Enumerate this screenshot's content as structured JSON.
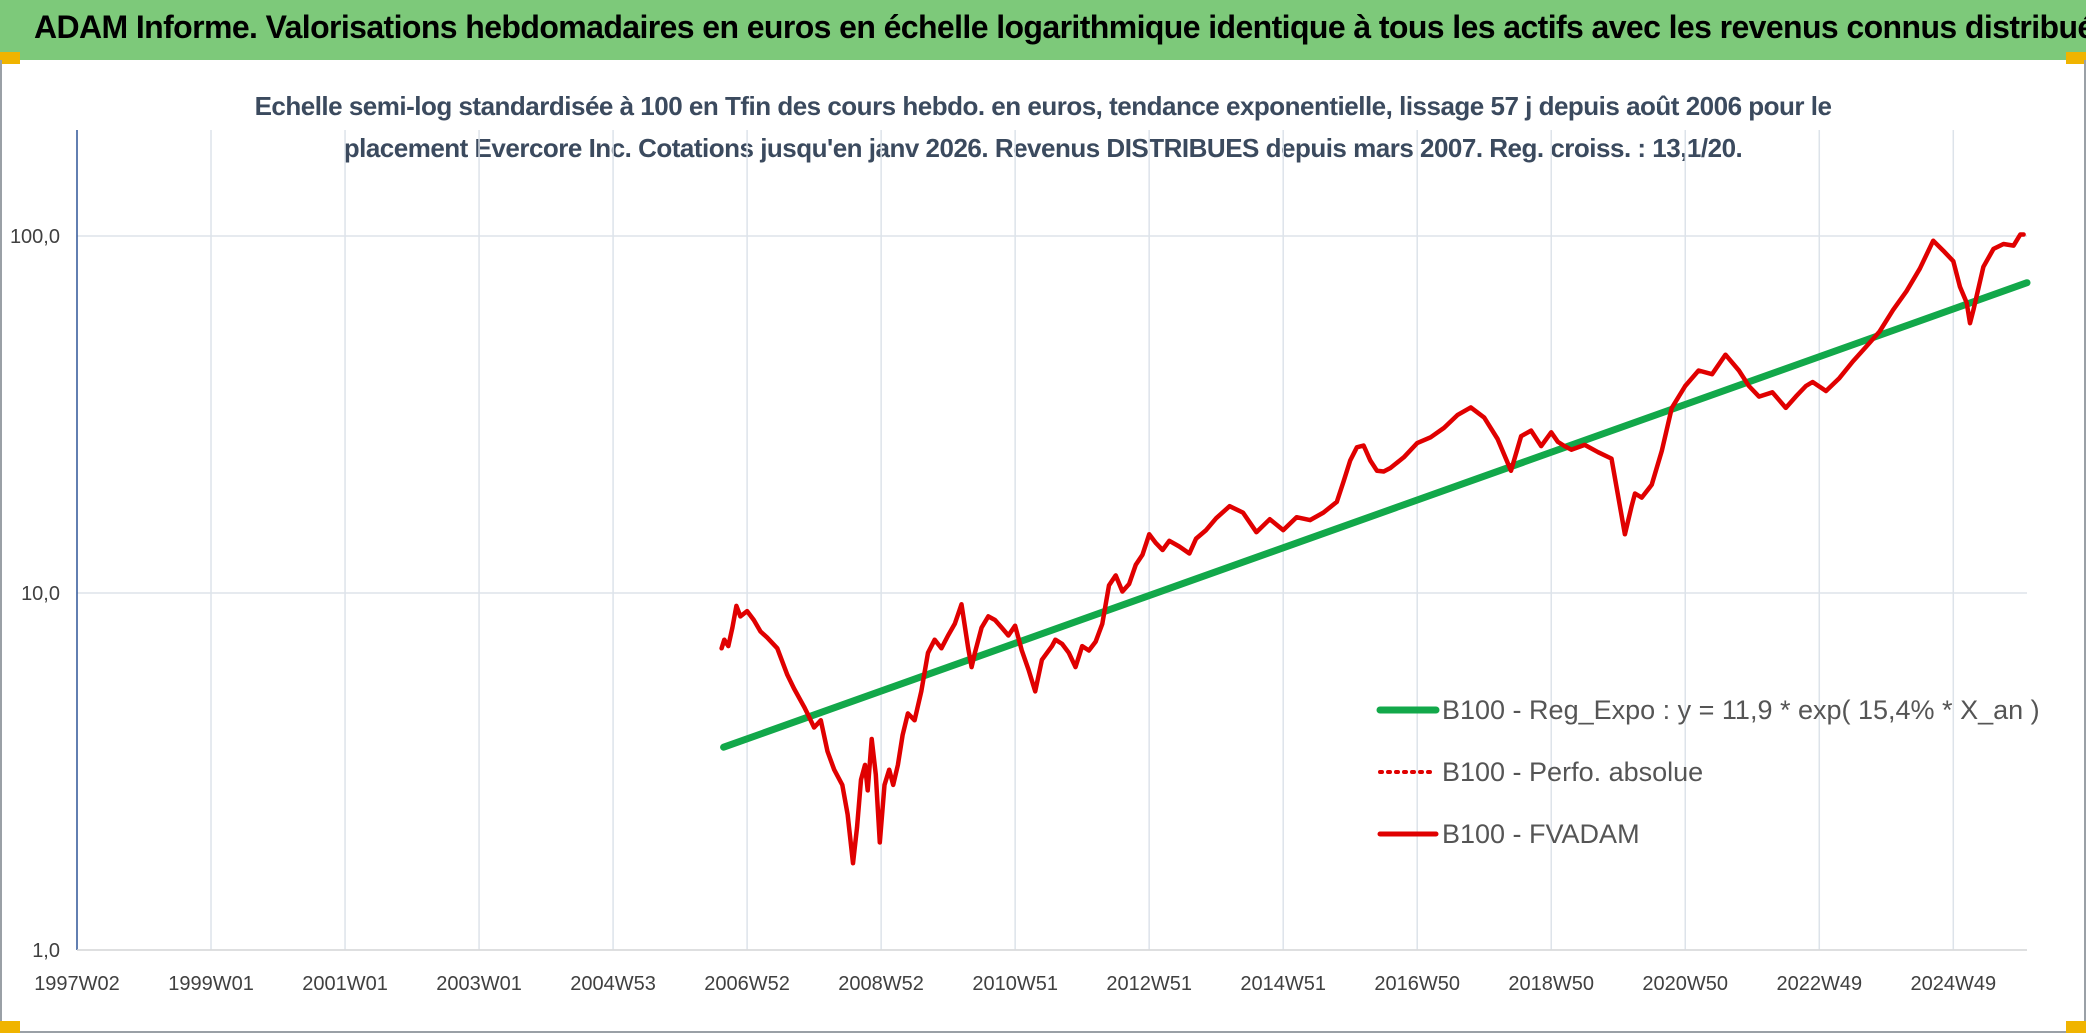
{
  "header": {
    "title": "ADAM Informe. Valorisations hebdomadaires en euros en échelle logarithmique identique à tous les actifs avec les revenus connus distribués"
  },
  "chart_data": {
    "type": "line",
    "title_line1": "Echelle semi-log standardisée à 100 en Tfin des cours hebdo. en euros, tendance exponentielle, lissage 57 j depuis août 2006 pour le",
    "title_line2": "placement Evercore Inc. Cotations jusqu'en janv 2026. Revenus DISTRIBUES depuis mars 2007. Reg. croiss. : 13,1/20.",
    "y_scale": "log",
    "ylim": [
      1,
      180
    ],
    "y_ticks": [
      {
        "value": 1,
        "label": "1,0"
      },
      {
        "value": 10,
        "label": "10,0"
      },
      {
        "value": 100,
        "label": "100,0"
      }
    ],
    "x_ticks": [
      {
        "year": 1997.0,
        "label": "1997W02"
      },
      {
        "year": 1999.0,
        "label": "1999W01"
      },
      {
        "year": 2001.0,
        "label": "2001W01"
      },
      {
        "year": 2003.0,
        "label": "2003W01"
      },
      {
        "year": 2005.0,
        "label": "2004W53"
      },
      {
        "year": 2007.0,
        "label": "2006W52"
      },
      {
        "year": 2009.0,
        "label": "2008W52"
      },
      {
        "year": 2011.0,
        "label": "2010W51"
      },
      {
        "year": 2013.0,
        "label": "2012W51"
      },
      {
        "year": 2015.0,
        "label": "2014W51"
      },
      {
        "year": 2017.0,
        "label": "2016W50"
      },
      {
        "year": 2019.0,
        "label": "2018W50"
      },
      {
        "year": 2021.0,
        "label": "2020W50"
      },
      {
        "year": 2023.0,
        "label": "2022W49"
      },
      {
        "year": 2025.0,
        "label": "2024W49"
      }
    ],
    "xlim": [
      1997.0,
      2026.1
    ],
    "grid": true,
    "legend_placement": "right",
    "series": [
      {
        "name": "B100 - Reg_Expo : y = 11,9 * exp( 15,4% *  X_an )",
        "style": "solid-thick",
        "color": "#12a84a",
        "x": [
          2006.65,
          2026.1
        ],
        "y": [
          3.7,
          74
        ]
      },
      {
        "name": "B100 - Perfo. absolue",
        "style": "dotted",
        "color": "#e00000",
        "x": [],
        "y": []
      },
      {
        "name": "B100 - FVADAM",
        "style": "solid",
        "color": "#e00000",
        "x": [
          2006.62,
          2006.66,
          2006.72,
          2006.78,
          2006.84,
          2006.9,
          2007.0,
          2007.1,
          2007.2,
          2007.3,
          2007.45,
          2007.6,
          2007.7,
          2007.85,
          2007.9,
          2008.0,
          2008.1,
          2008.2,
          2008.3,
          2008.42,
          2008.5,
          2008.58,
          2008.64,
          2008.7,
          2008.76,
          2008.8,
          2008.86,
          2008.92,
          2008.98,
          2009.05,
          2009.12,
          2009.18,
          2009.25,
          2009.32,
          2009.4,
          2009.5,
          2009.6,
          2009.7,
          2009.8,
          2009.9,
          2010.0,
          2010.1,
          2010.2,
          2010.3,
          2010.35,
          2010.4,
          2010.5,
          2010.6,
          2010.7,
          2010.8,
          2010.9,
          2011.0,
          2011.1,
          2011.2,
          2011.3,
          2011.4,
          2011.55,
          2011.6,
          2011.7,
          2011.8,
          2011.9,
          2012.0,
          2012.1,
          2012.2,
          2012.3,
          2012.4,
          2012.5,
          2012.6,
          2012.7,
          2012.8,
          2012.9,
          2013.0,
          2013.1,
          2013.2,
          2013.3,
          2013.45,
          2013.6,
          2013.7,
          2013.85,
          2014.0,
          2014.2,
          2014.4,
          2014.6,
          2014.8,
          2015.0,
          2015.2,
          2015.4,
          2015.6,
          2015.8,
          2015.9,
          2016.0,
          2016.1,
          2016.2,
          2016.3,
          2016.4,
          2016.5,
          2016.6,
          2016.8,
          2017.0,
          2017.2,
          2017.4,
          2017.6,
          2017.8,
          2018.0,
          2018.2,
          2018.4,
          2018.55,
          2018.7,
          2018.85,
          2019.0,
          2019.1,
          2019.2,
          2019.3,
          2019.5,
          2019.7,
          2019.9,
          2020.1,
          2020.2,
          2020.25,
          2020.35,
          2020.5,
          2020.65,
          2020.8,
          2021.0,
          2021.2,
          2021.4,
          2021.6,
          2021.8,
          2021.95,
          2022.1,
          2022.3,
          2022.5,
          2022.65,
          2022.8,
          2022.9,
          2023.1,
          2023.3,
          2023.5,
          2023.7,
          2023.9,
          2024.1,
          2024.3,
          2024.5,
          2024.7,
          2024.85,
          2025.0,
          2025.1,
          2025.2,
          2025.25,
          2025.3,
          2025.35,
          2025.45,
          2025.6,
          2025.75,
          2025.9,
          2026.0,
          2026.05
        ],
        "y": [
          7.0,
          7.4,
          7.1,
          8.0,
          9.2,
          8.6,
          8.9,
          8.4,
          7.8,
          7.5,
          7.0,
          5.9,
          5.4,
          4.8,
          4.6,
          4.2,
          4.4,
          3.6,
          3.2,
          2.9,
          2.4,
          1.75,
          2.2,
          3.0,
          3.3,
          2.8,
          3.9,
          3.1,
          2.0,
          2.9,
          3.2,
          2.9,
          3.3,
          4.0,
          4.6,
          4.4,
          5.3,
          6.8,
          7.4,
          7.0,
          7.6,
          8.2,
          9.3,
          7.0,
          6.2,
          6.8,
          8.0,
          8.6,
          8.4,
          8.0,
          7.6,
          8.1,
          6.9,
          6.1,
          5.3,
          6.5,
          7.1,
          7.4,
          7.2,
          6.8,
          6.2,
          7.1,
          6.9,
          7.3,
          8.2,
          10.5,
          11.2,
          10.1,
          10.6,
          12.0,
          12.8,
          14.6,
          13.8,
          13.2,
          14.0,
          13.5,
          12.9,
          14.2,
          15.0,
          16.2,
          17.5,
          16.8,
          14.8,
          16.1,
          15.0,
          16.3,
          16.0,
          16.8,
          18.0,
          20.5,
          23.5,
          25.6,
          25.9,
          23.5,
          22.0,
          21.9,
          22.4,
          24.0,
          26.3,
          27.3,
          29.0,
          31.5,
          33.1,
          31.0,
          27.0,
          22.0,
          27.5,
          28.5,
          25.8,
          28.2,
          26.5,
          25.8,
          25.2,
          26.0,
          24.8,
          23.8,
          14.6,
          17.5,
          19.0,
          18.5,
          20.1,
          25.0,
          33.0,
          38.0,
          42.0,
          41.0,
          46.5,
          42.0,
          38.0,
          35.5,
          36.5,
          33.0,
          35.5,
          38.0,
          39.0,
          36.8,
          40.0,
          44.5,
          49.0,
          54.0,
          62.0,
          70.0,
          81.0,
          97.0,
          91.0,
          85.0,
          72.0,
          65.0,
          57.0,
          62.0,
          68.0,
          82.0,
          92.0,
          95.0,
          94.0,
          101.0,
          101.0
        ]
      }
    ]
  }
}
